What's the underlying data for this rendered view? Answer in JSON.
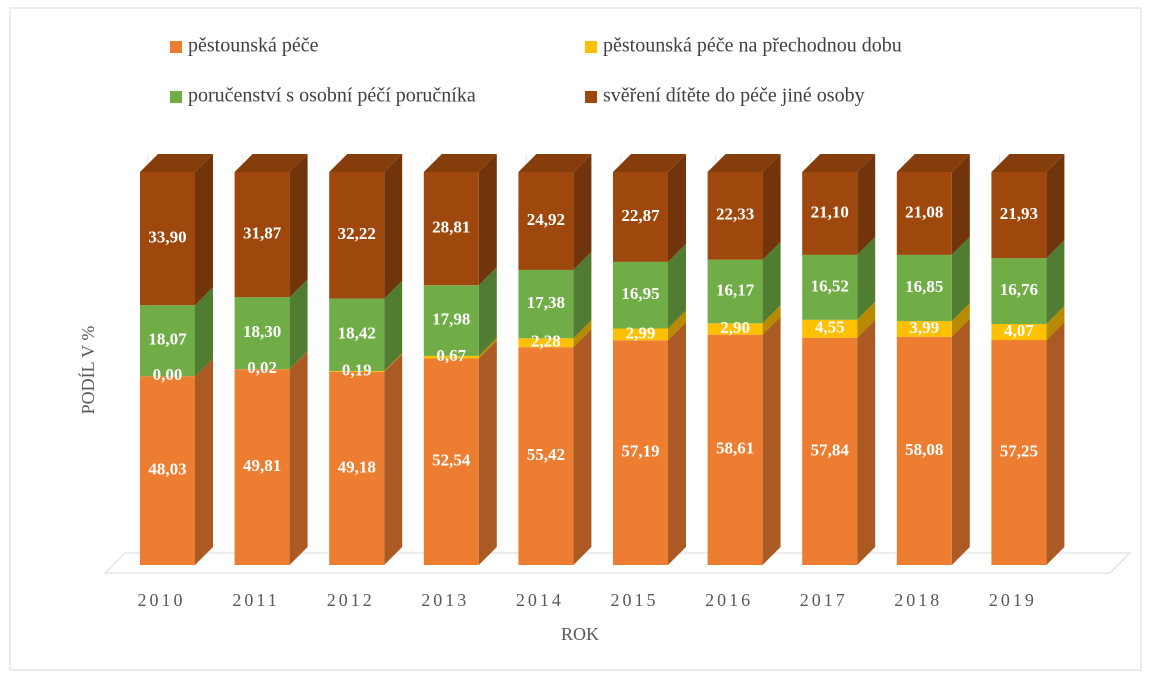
{
  "chart_data": {
    "type": "bar3d_stacked",
    "xlabel": "ROK",
    "ylabel": "PODÍL V %",
    "categories": [
      "2010",
      "2011",
      "2012",
      "2013",
      "2014",
      "2015",
      "2016",
      "2017",
      "2018",
      "2019"
    ],
    "ylim": [
      0,
      100
    ],
    "series": [
      {
        "name": "pěstounská péče",
        "color": "#ED7D31",
        "values": [
          48.03,
          49.81,
          49.18,
          52.54,
          55.42,
          57.19,
          58.61,
          57.84,
          58.08,
          57.25
        ],
        "value_labels": [
          "48,03",
          "49,81",
          "49,18",
          "52,54",
          "55,42",
          "57,19",
          "58,61",
          "57,84",
          "58,08",
          "57,25"
        ]
      },
      {
        "name": "pěstounská péče na přechodnou dobu",
        "color": "#FFC000",
        "values": [
          0.0,
          0.02,
          0.19,
          0.67,
          2.28,
          2.99,
          2.9,
          4.55,
          3.99,
          4.07
        ],
        "value_labels": [
          "0,00",
          "0,02",
          "0,19",
          "0,67",
          "2,28",
          "2,99",
          "2,90",
          "4,55",
          "3,99",
          "4,07"
        ]
      },
      {
        "name": "poručenství s osobní péčí poručníka",
        "color": "#70AD47",
        "values": [
          18.07,
          18.3,
          18.42,
          17.98,
          17.38,
          16.95,
          16.17,
          16.52,
          16.85,
          16.76
        ],
        "value_labels": [
          "18,07",
          "18,30",
          "18,42",
          "17,98",
          "17,38",
          "16,95",
          "16,17",
          "16,52",
          "16,85",
          "16,76"
        ]
      },
      {
        "name": "svěření dítěte do péče jiné osoby",
        "color": "#9E480E",
        "values": [
          33.9,
          31.87,
          32.22,
          28.81,
          24.92,
          22.87,
          22.33,
          21.1,
          21.08,
          21.93
        ],
        "value_labels": [
          "33,90",
          "31,87",
          "32,22",
          "28,81",
          "24,92",
          "22,87",
          "22,33",
          "21,10",
          "21,08",
          "21,93"
        ]
      }
    ]
  }
}
